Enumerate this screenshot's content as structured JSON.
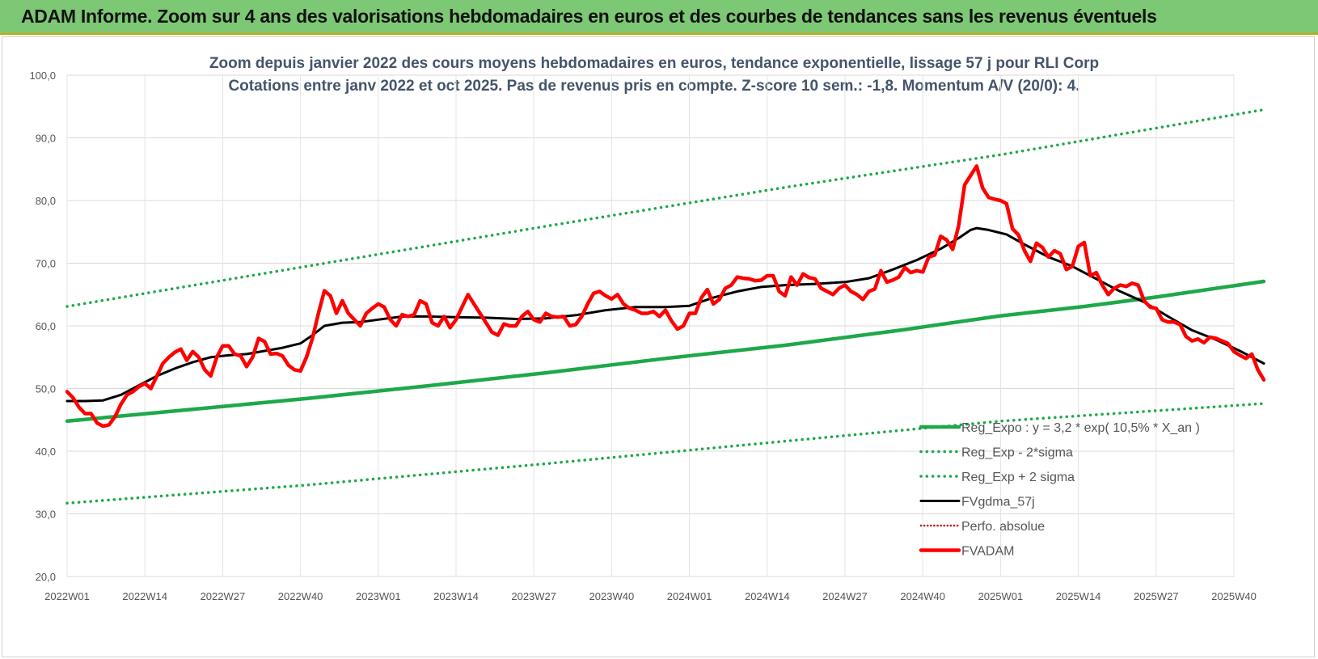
{
  "header": {
    "title": "ADAM Informe. Zoom sur 4 ans des valorisations hebdomadaires en euros et des courbes de tendances sans les revenus éventuels"
  },
  "colors": {
    "banner": "#7dc874",
    "trend": "#1ea84a",
    "band": "#1ea84a",
    "ma": "#000000",
    "price": "#ff0000"
  },
  "chart_data": {
    "type": "line",
    "title": "Zoom depuis janvier 2022 des cours moyens hebdomadaires en euros, tendance exponentielle, lissage 57 j pour RLI Corp",
    "subtitle": "Cotations entre janv 2022 et oct 2025. Pas de revenus pris en compte. Z-score 10 sem.: -1,8. Momentum A/V (20/0): 4.",
    "ylim": [
      20,
      100
    ],
    "yticks": [
      "20,0",
      "30,0",
      "40,0",
      "50,0",
      "60,0",
      "70,0",
      "80,0",
      "90,0",
      "100,0"
    ],
    "xlim": [
      0,
      195
    ],
    "xticks": [
      {
        "label": "2022W01",
        "x": 0
      },
      {
        "label": "2022W14",
        "x": 13
      },
      {
        "label": "2022W27",
        "x": 26
      },
      {
        "label": "2022W40",
        "x": 39
      },
      {
        "label": "2023W01",
        "x": 52
      },
      {
        "label": "2023W14",
        "x": 65
      },
      {
        "label": "2023W27",
        "x": 78
      },
      {
        "label": "2023W40",
        "x": 91
      },
      {
        "label": "2024W01",
        "x": 104
      },
      {
        "label": "2024W14",
        "x": 117
      },
      {
        "label": "2024W27",
        "x": 130
      },
      {
        "label": "2024W40",
        "x": 143
      },
      {
        "label": "2025W01",
        "x": 156
      },
      {
        "label": "2025W14",
        "x": 169
      },
      {
        "label": "2025W27",
        "x": 182
      },
      {
        "label": "2025W40",
        "x": 195
      }
    ],
    "grid": true,
    "legend_position": "bottom-right",
    "series": [
      {
        "name": "Reg_Expo : y = 3,2 * exp( 10,5% * X_an )",
        "style": "thick",
        "points": [
          [
            0,
            44.8
          ],
          [
            20,
            46.6
          ],
          [
            40,
            48.4
          ],
          [
            60,
            50.4
          ],
          [
            80,
            52.5
          ],
          [
            100,
            54.8
          ],
          [
            120,
            56.9
          ],
          [
            140,
            59.4
          ],
          [
            156,
            61.6
          ],
          [
            170,
            63.1
          ],
          [
            182,
            64.6
          ],
          [
            200,
            67.1
          ]
        ]
      },
      {
        "name": "Reg_Exp - 2*sigma",
        "style": "dotted",
        "points": [
          [
            0,
            31.7
          ],
          [
            40,
            34.6
          ],
          [
            80,
            38.0
          ],
          [
            120,
            41.6
          ],
          [
            156,
            44.8
          ],
          [
            200,
            47.6
          ]
        ]
      },
      {
        "name": "Reg_Exp + 2 sigma",
        "style": "dotted",
        "points": [
          [
            0,
            63.1
          ],
          [
            40,
            69.5
          ],
          [
            80,
            75.9
          ],
          [
            120,
            82.1
          ],
          [
            156,
            87.3
          ],
          [
            200,
            94.5
          ]
        ]
      },
      {
        "name": "FVgdma_57j",
        "style": "ma",
        "points": [
          [
            0,
            48.0
          ],
          [
            3,
            48.0
          ],
          [
            6,
            48.1
          ],
          [
            9,
            49.0
          ],
          [
            12,
            50.5
          ],
          [
            15,
            52.0
          ],
          [
            18,
            53.2
          ],
          [
            21,
            54.2
          ],
          [
            24,
            55.0
          ],
          [
            27,
            55.3
          ],
          [
            30,
            55.5
          ],
          [
            33,
            56.0
          ],
          [
            36,
            56.5
          ],
          [
            39,
            57.2
          ],
          [
            41,
            58.5
          ],
          [
            43,
            60.0
          ],
          [
            46,
            60.5
          ],
          [
            49,
            60.6
          ],
          [
            52,
            61.0
          ],
          [
            56,
            61.5
          ],
          [
            60,
            61.5
          ],
          [
            65,
            61.4
          ],
          [
            70,
            61.3
          ],
          [
            75,
            61.1
          ],
          [
            80,
            61.2
          ],
          [
            85,
            61.7
          ],
          [
            90,
            62.5
          ],
          [
            95,
            63.0
          ],
          [
            100,
            63.0
          ],
          [
            104,
            63.2
          ],
          [
            108,
            64.5
          ],
          [
            112,
            65.5
          ],
          [
            116,
            66.2
          ],
          [
            120,
            66.5
          ],
          [
            125,
            66.7
          ],
          [
            130,
            67.0
          ],
          [
            134,
            67.6
          ],
          [
            138,
            69.0
          ],
          [
            142,
            70.5
          ],
          [
            146,
            72.3
          ],
          [
            149,
            74.0
          ],
          [
            151,
            75.3
          ],
          [
            152,
            75.6
          ],
          [
            154,
            75.3
          ],
          [
            157,
            74.6
          ],
          [
            160,
            73.0
          ],
          [
            164,
            71.0
          ],
          [
            168,
            69.5
          ],
          [
            172,
            67.5
          ],
          [
            176,
            65.5
          ],
          [
            180,
            63.8
          ],
          [
            184,
            61.5
          ],
          [
            188,
            59.3
          ],
          [
            192,
            57.8
          ],
          [
            196,
            56.0
          ],
          [
            200,
            54.0
          ]
        ]
      },
      {
        "name": "Perfo. absolue",
        "style": "dotted-red",
        "points": []
      },
      {
        "name": "FVADAM",
        "style": "price",
        "points": [
          [
            0,
            49.5
          ],
          [
            1,
            48.5
          ],
          [
            2,
            47.0
          ],
          [
            3,
            46.0
          ],
          [
            4,
            46.0
          ],
          [
            5,
            44.5
          ],
          [
            6,
            44.0
          ],
          [
            7,
            44.2
          ],
          [
            8,
            45.5
          ],
          [
            9,
            47.5
          ],
          [
            10,
            49.0
          ],
          [
            11,
            49.5
          ],
          [
            12,
            50.3
          ],
          [
            13,
            50.8
          ],
          [
            14,
            50.0
          ],
          [
            15,
            52.0
          ],
          [
            16,
            54.0
          ],
          [
            17,
            55.0
          ],
          [
            18,
            55.8
          ],
          [
            19,
            56.3
          ],
          [
            20,
            54.5
          ],
          [
            21,
            55.9
          ],
          [
            22,
            55.0
          ],
          [
            23,
            53.0
          ],
          [
            24,
            52.0
          ],
          [
            25,
            55.0
          ],
          [
            26,
            56.8
          ],
          [
            27,
            56.8
          ],
          [
            28,
            55.5
          ],
          [
            29,
            55.2
          ],
          [
            30,
            53.5
          ],
          [
            31,
            55.0
          ],
          [
            32,
            58.0
          ],
          [
            33,
            57.5
          ],
          [
            34,
            55.5
          ],
          [
            35,
            55.6
          ],
          [
            36,
            55.2
          ],
          [
            37,
            53.7
          ],
          [
            38,
            53.0
          ],
          [
            39,
            52.8
          ],
          [
            40,
            55.0
          ],
          [
            41,
            58.0
          ],
          [
            42,
            62.0
          ],
          [
            43,
            65.6
          ],
          [
            44,
            64.8
          ],
          [
            45,
            62.0
          ],
          [
            46,
            64.0
          ],
          [
            47,
            62.0
          ],
          [
            48,
            61.0
          ],
          [
            49,
            60.0
          ],
          [
            50,
            62.0
          ],
          [
            51,
            62.8
          ],
          [
            52,
            63.5
          ],
          [
            53,
            63.0
          ],
          [
            54,
            61.0
          ],
          [
            55,
            60.0
          ],
          [
            56,
            61.8
          ],
          [
            57,
            61.5
          ],
          [
            58,
            61.8
          ],
          [
            59,
            64.0
          ],
          [
            60,
            63.5
          ],
          [
            61,
            60.5
          ],
          [
            62,
            60.0
          ],
          [
            63,
            61.5
          ],
          [
            64,
            59.7
          ],
          [
            65,
            61.0
          ],
          [
            66,
            63.0
          ],
          [
            67,
            65.0
          ],
          [
            68,
            63.5
          ],
          [
            69,
            62.0
          ],
          [
            70,
            60.5
          ],
          [
            71,
            59.0
          ],
          [
            72,
            58.5
          ],
          [
            73,
            60.3
          ],
          [
            74,
            60.0
          ],
          [
            75,
            60.0
          ],
          [
            76,
            61.5
          ],
          [
            77,
            62.3
          ],
          [
            78,
            61.0
          ],
          [
            79,
            60.6
          ],
          [
            80,
            62.0
          ],
          [
            81,
            61.5
          ],
          [
            82,
            61.4
          ],
          [
            83,
            61.5
          ],
          [
            84,
            60.0
          ],
          [
            85,
            60.2
          ],
          [
            86,
            61.5
          ],
          [
            87,
            63.5
          ],
          [
            88,
            65.2
          ],
          [
            89,
            65.5
          ],
          [
            90,
            64.8
          ],
          [
            91,
            64.3
          ],
          [
            92,
            65.0
          ],
          [
            93,
            63.5
          ],
          [
            94,
            62.8
          ],
          [
            95,
            62.5
          ],
          [
            96,
            62.0
          ],
          [
            97,
            62.0
          ],
          [
            98,
            62.3
          ],
          [
            99,
            61.5
          ],
          [
            100,
            62.5
          ],
          [
            101,
            60.8
          ],
          [
            102,
            59.5
          ],
          [
            103,
            60.0
          ],
          [
            104,
            62.0
          ],
          [
            105,
            62.0
          ],
          [
            106,
            64.5
          ],
          [
            107,
            65.8
          ],
          [
            108,
            63.5
          ],
          [
            109,
            64.2
          ],
          [
            110,
            66.0
          ],
          [
            111,
            66.5
          ],
          [
            112,
            67.8
          ],
          [
            113,
            67.6
          ],
          [
            114,
            67.5
          ],
          [
            115,
            67.2
          ],
          [
            116,
            67.3
          ],
          [
            117,
            68.0
          ],
          [
            118,
            68.0
          ],
          [
            119,
            65.5
          ],
          [
            120,
            64.8
          ],
          [
            121,
            67.8
          ],
          [
            122,
            66.5
          ],
          [
            123,
            68.3
          ],
          [
            124,
            67.7
          ],
          [
            125,
            67.5
          ],
          [
            126,
            66.0
          ],
          [
            127,
            65.5
          ],
          [
            128,
            65.0
          ],
          [
            129,
            66.0
          ],
          [
            130,
            66.5
          ],
          [
            131,
            65.5
          ],
          [
            132,
            65.0
          ],
          [
            133,
            64.2
          ],
          [
            134,
            65.5
          ],
          [
            135,
            65.9
          ],
          [
            136,
            68.8
          ],
          [
            137,
            67.0
          ],
          [
            138,
            67.3
          ],
          [
            139,
            67.8
          ],
          [
            140,
            69.3
          ],
          [
            141,
            68.5
          ],
          [
            142,
            68.8
          ],
          [
            143,
            68.6
          ],
          [
            144,
            71.0
          ],
          [
            145,
            71.3
          ],
          [
            146,
            74.3
          ],
          [
            147,
            73.7
          ],
          [
            148,
            72.2
          ],
          [
            149,
            76.0
          ],
          [
            150,
            82.5
          ],
          [
            151,
            84.0
          ],
          [
            152,
            85.5
          ],
          [
            153,
            82.0
          ],
          [
            154,
            80.5
          ],
          [
            155,
            80.2
          ],
          [
            156,
            80.0
          ],
          [
            157,
            79.5
          ],
          [
            158,
            75.5
          ],
          [
            159,
            74.5
          ],
          [
            160,
            72.0
          ],
          [
            161,
            70.3
          ],
          [
            162,
            73.2
          ],
          [
            163,
            72.5
          ],
          [
            164,
            71.0
          ],
          [
            165,
            72.0
          ],
          [
            166,
            71.5
          ],
          [
            167,
            69.0
          ],
          [
            168,
            69.5
          ],
          [
            169,
            72.7
          ],
          [
            170,
            73.3
          ],
          [
            171,
            68.0
          ],
          [
            172,
            68.5
          ],
          [
            173,
            66.5
          ],
          [
            174,
            65.0
          ],
          [
            175,
            66.0
          ],
          [
            176,
            66.5
          ],
          [
            177,
            66.3
          ],
          [
            178,
            66.8
          ],
          [
            179,
            66.5
          ],
          [
            180,
            64.0
          ],
          [
            181,
            63.0
          ],
          [
            182,
            62.8
          ],
          [
            183,
            61.0
          ],
          [
            184,
            60.6
          ],
          [
            185,
            60.6
          ],
          [
            186,
            60.2
          ],
          [
            187,
            58.3
          ],
          [
            188,
            57.6
          ],
          [
            189,
            57.9
          ],
          [
            190,
            57.3
          ],
          [
            191,
            58.2
          ],
          [
            192,
            58.0
          ],
          [
            193,
            57.6
          ],
          [
            194,
            57.2
          ],
          [
            195,
            55.9
          ],
          [
            196,
            55.3
          ],
          [
            197,
            54.8
          ],
          [
            198,
            55.5
          ],
          [
            199,
            53.0
          ],
          [
            200,
            51.4
          ]
        ]
      }
    ]
  }
}
